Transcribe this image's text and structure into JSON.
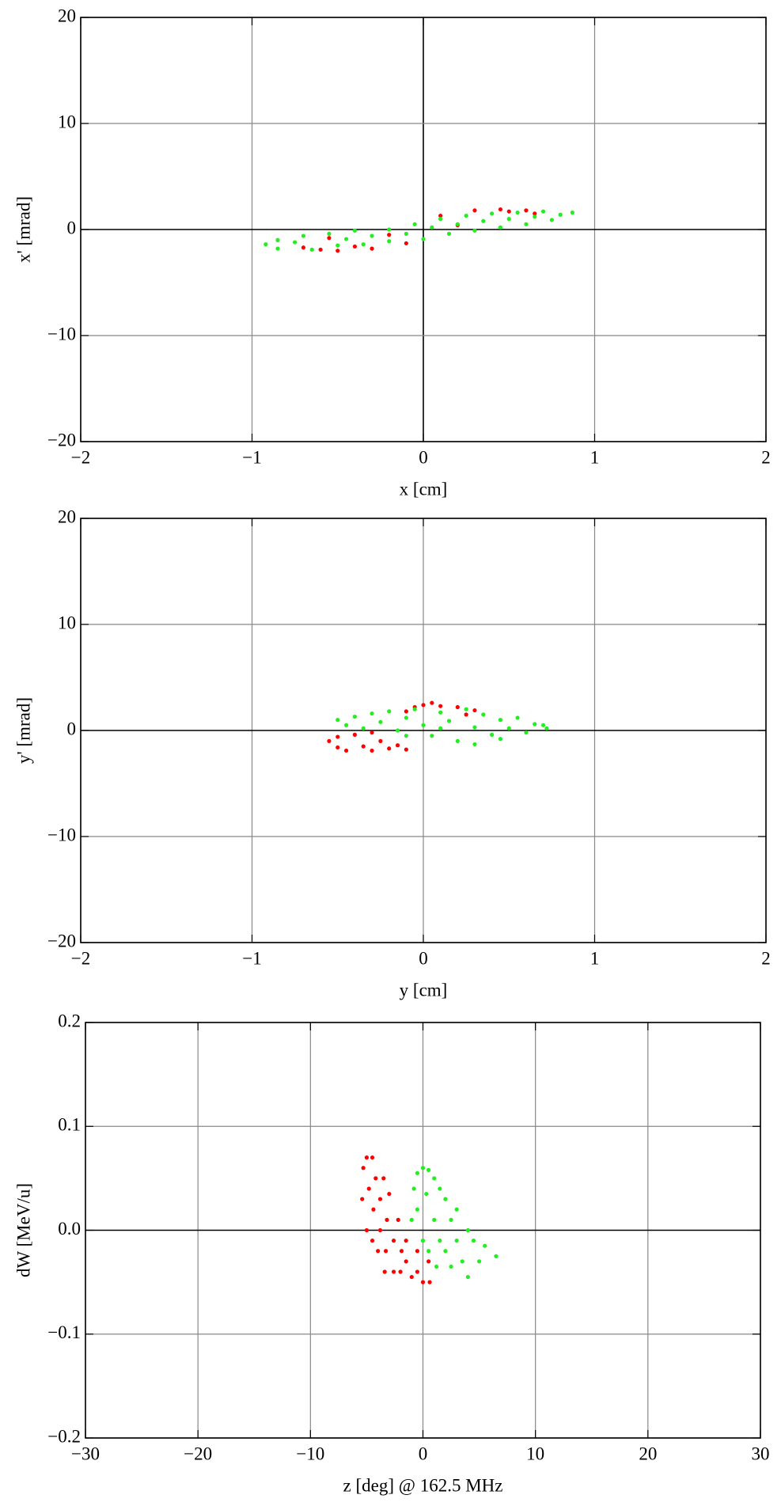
{
  "chart_data": [
    {
      "type": "scatter",
      "xlabel": "x [cm]",
      "ylabel": "x' [mrad]",
      "xlim": [
        -2,
        2
      ],
      "ylim": [
        -20,
        20
      ],
      "xticks": [
        {
          "value": -2,
          "label": "−2"
        },
        {
          "value": -1,
          "label": "−1"
        },
        0,
        1,
        2
      ],
      "yticks": [
        {
          "value": -20,
          "label": "−20"
        },
        {
          "value": -10,
          "label": "−10"
        },
        0,
        10,
        20
      ],
      "grid": true,
      "origin_axes": [
        "x",
        "y"
      ],
      "series": [
        {
          "color": "#ff0000",
          "x": [
            -0.7,
            -0.6,
            -0.5,
            -0.4,
            -0.3,
            -0.1,
            -0.2,
            0.1,
            0.2,
            0.3,
            0.45,
            0.5,
            0.6,
            0.65,
            -0.55
          ],
          "values": [
            -1.7,
            -1.9,
            -2.0,
            -1.6,
            -1.8,
            -1.3,
            -0.5,
            1.3,
            0.4,
            1.8,
            1.9,
            1.7,
            1.8,
            1.5,
            -0.8
          ]
        },
        {
          "color": "#22ee22",
          "x": [
            -0.92,
            -0.85,
            -0.85,
            -0.75,
            -0.7,
            -0.65,
            -0.55,
            -0.5,
            -0.45,
            -0.4,
            -0.35,
            -0.3,
            -0.2,
            -0.2,
            -0.1,
            -0.05,
            0,
            0.05,
            0.1,
            0.15,
            0.2,
            0.25,
            0.3,
            0.35,
            0.4,
            0.45,
            0.5,
            0.55,
            0.6,
            0.65,
            0.7,
            0.75,
            0.8,
            0.87
          ],
          "values": [
            -1.4,
            -1.0,
            -1.8,
            -1.2,
            -0.6,
            -1.9,
            -0.4,
            -1.5,
            -0.9,
            -0.1,
            -1.4,
            -0.6,
            0.0,
            -1.1,
            -0.4,
            0.5,
            -0.9,
            0.2,
            1.0,
            -0.4,
            0.5,
            1.3,
            -0.1,
            0.8,
            1.5,
            0.2,
            1.0,
            1.6,
            0.5,
            1.2,
            1.7,
            0.9,
            1.4,
            1.6
          ]
        }
      ]
    },
    {
      "type": "scatter",
      "xlabel": "y [cm]",
      "ylabel": "y' [mrad]",
      "xlim": [
        -2,
        2
      ],
      "ylim": [
        -20,
        20
      ],
      "xticks": [
        {
          "value": -2,
          "label": "−2"
        },
        {
          "value": -1,
          "label": "−1"
        },
        0,
        1,
        2
      ],
      "yticks": [
        {
          "value": -20,
          "label": "−20"
        },
        {
          "value": -10,
          "label": "−10"
        },
        0,
        10,
        20
      ],
      "grid": true,
      "origin_axes": [
        "y"
      ],
      "series": [
        {
          "color": "#ff0000",
          "x": [
            -0.55,
            -0.5,
            -0.5,
            -0.45,
            -0.4,
            -0.35,
            -0.3,
            -0.25,
            -0.2,
            -0.15,
            -0.1,
            0,
            0.05,
            0.1,
            -0.05,
            0.2,
            0.3,
            -0.1,
            0.25,
            -0.3
          ],
          "values": [
            -1.0,
            -0.6,
            -1.6,
            -1.9,
            -0.4,
            -1.5,
            -1.9,
            -1.0,
            -1.7,
            -1.4,
            -1.8,
            2.4,
            2.6,
            2.3,
            2.2,
            2.2,
            1.9,
            1.8,
            1.5,
            -0.2
          ]
        },
        {
          "color": "#22ee22",
          "x": [
            -0.5,
            -0.45,
            -0.4,
            -0.35,
            -0.3,
            -0.25,
            -0.2,
            -0.15,
            -0.1,
            -0.05,
            0,
            0.05,
            0.1,
            0.15,
            0.2,
            0.25,
            0.3,
            0.35,
            0.4,
            0.45,
            0.5,
            0.55,
            0.6,
            0.65,
            0.7,
            0.72,
            -0.1,
            0.1,
            0.3,
            0.45
          ],
          "values": [
            1.0,
            0.5,
            1.3,
            0.2,
            1.6,
            0.8,
            1.8,
            0.0,
            1.2,
            2.0,
            0.5,
            -0.5,
            1.7,
            0.9,
            -1.0,
            2.0,
            0.3,
            1.5,
            -0.4,
            1.0,
            0.2,
            1.2,
            -0.2,
            0.6,
            0.5,
            0.2,
            -0.5,
            0.2,
            -1.3,
            -0.8
          ]
        }
      ]
    },
    {
      "type": "scatter",
      "xlabel": "z [deg] @ 162.5 MHz",
      "ylabel": "dW [MeV/u]",
      "xlim": [
        -30,
        30
      ],
      "ylim": [
        -0.2,
        0.2
      ],
      "xticks": [
        {
          "value": -30,
          "label": "−30"
        },
        {
          "value": -20,
          "label": "−20"
        },
        {
          "value": -10,
          "label": "−10"
        },
        0,
        10,
        20,
        30
      ],
      "yticks": [
        {
          "value": -0.2,
          "label": "−0.2"
        },
        {
          "value": -0.1,
          "label": "−0.1"
        },
        {
          "value": 0,
          "label": "0.0"
        },
        0.1,
        0.2
      ],
      "grid": true,
      "origin_axes": [
        "y"
      ],
      "series": [
        {
          "color": "#ff0000",
          "x": [
            -5.3,
            -5,
            -4.5,
            -5.4,
            -4.8,
            -4.2,
            -5,
            -4.4,
            -3.8,
            -4.5,
            -3.8,
            -3.2,
            -4,
            -3.3,
            -2.6,
            -3.4,
            -2.6,
            -1.9,
            -2,
            -1.5,
            -1,
            -0.5,
            0,
            0.6,
            0.5,
            -0.5,
            -1.5,
            -2.2,
            -3,
            -3.5
          ],
          "values": [
            0.06,
            0.07,
            0.07,
            0.03,
            0.04,
            0.05,
            0.0,
            0.02,
            0.03,
            -0.01,
            0.0,
            0.01,
            -0.02,
            -0.02,
            -0.01,
            -0.04,
            -0.04,
            -0.02,
            -0.04,
            -0.03,
            -0.045,
            -0.04,
            -0.05,
            -0.05,
            -0.03,
            -0.02,
            -0.01,
            0.01,
            0.035,
            0.05
          ]
        },
        {
          "color": "#22ee22",
          "x": [
            -0.8,
            -0.5,
            0,
            0.5,
            -1,
            -0.5,
            0.3,
            1,
            1.5,
            0,
            1,
            2,
            0.5,
            1.5,
            2.5,
            3,
            1.2,
            2,
            3,
            4,
            2.5,
            3.5,
            4.5,
            5.5,
            6.5,
            4,
            5
          ],
          "values": [
            0.04,
            0.055,
            0.06,
            0.058,
            0.01,
            0.02,
            0.035,
            0.05,
            0.04,
            -0.01,
            0.01,
            0.03,
            -0.02,
            -0.01,
            0.01,
            0.02,
            -0.035,
            -0.02,
            -0.01,
            0.0,
            -0.035,
            -0.03,
            -0.01,
            -0.015,
            -0.025,
            -0.045,
            -0.03
          ]
        }
      ]
    }
  ]
}
